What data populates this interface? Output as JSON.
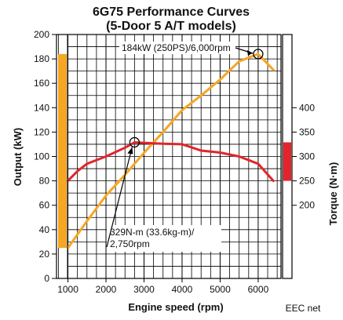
{
  "chart_data": {
    "type": "line",
    "title_line1": "6G75 Performance Curves",
    "title_line2": "(5-Door 5 A/T models)",
    "xlabel": "Engine speed (rpm)",
    "ylabel_left": "Output (kW)",
    "ylabel_right": "Torque (N·m)",
    "footnote": "EEC net",
    "x_ticks": [
      1000,
      2000,
      3000,
      4000,
      5000,
      6000
    ],
    "xlim": [
      700,
      6600
    ],
    "y_left_ticks": [
      0,
      20,
      40,
      60,
      80,
      100,
      120,
      140,
      160,
      180,
      200
    ],
    "ylim_left": [
      0,
      200
    ],
    "y_right_ticks": [
      200,
      250,
      300,
      350,
      400
    ],
    "ylim_right": [
      50,
      550
    ],
    "grid": true,
    "series": [
      {
        "key": "output",
        "color": "#f5a623",
        "axis": "left",
        "x": [
          1000,
          1500,
          2000,
          2500,
          3000,
          3500,
          4000,
          4500,
          5000,
          5500,
          6000,
          6400
        ],
        "y": [
          25,
          47,
          68,
          85,
          103,
          120,
          138,
          150,
          163,
          178,
          184,
          171
        ]
      },
      {
        "key": "torque",
        "color": "#e3242b",
        "axis": "right",
        "x": [
          1000,
          1250,
          1500,
          2000,
          2500,
          2750,
          3000,
          3500,
          4000,
          4500,
          5000,
          5500,
          6000,
          6400
        ],
        "y": [
          250,
          270,
          285,
          300,
          318,
          329,
          328,
          326,
          325,
          312,
          308,
          300,
          285,
          250
        ]
      }
    ],
    "bars": [
      {
        "key": "output-range",
        "color": "#f5a623",
        "axis": "left",
        "range": [
          25,
          184
        ]
      },
      {
        "key": "torque-range",
        "color": "#e3242b",
        "axis": "right",
        "range": [
          250,
          329
        ]
      }
    ],
    "annotations": [
      {
        "key": "peak-output",
        "lines": [
          "184kW (250PS)/6,000rpm"
        ],
        "point": [
          6000,
          184
        ],
        "axis": "left"
      },
      {
        "key": "peak-torque",
        "lines": [
          "329N-m (33.6kg-m)/",
          "2,750rpm"
        ],
        "point": [
          2750,
          329
        ],
        "axis": "right"
      }
    ]
  }
}
